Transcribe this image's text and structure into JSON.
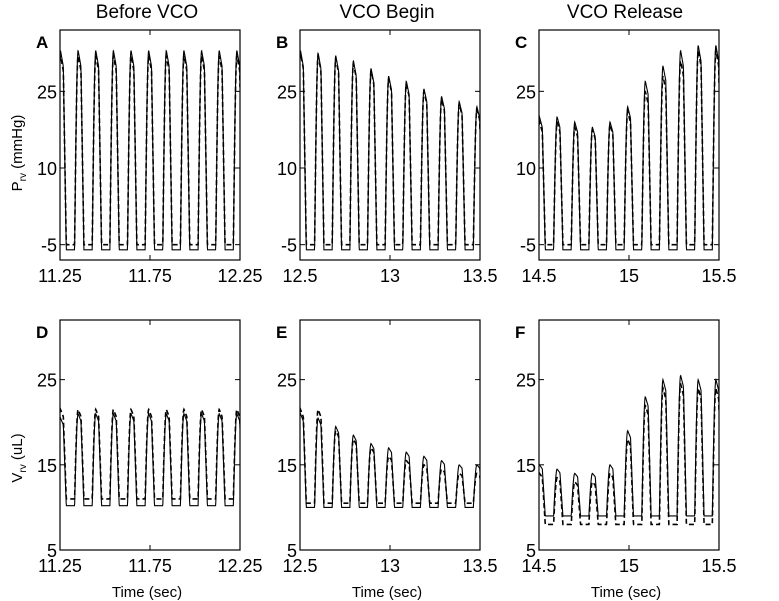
{
  "column_titles": [
    "Before VCO",
    "VCO Begin",
    "VCO Release"
  ],
  "panel_letters": [
    "A",
    "B",
    "C",
    "D",
    "E",
    "F"
  ],
  "row_ylabels": [
    {
      "main": "P",
      "sub": "rv",
      "unit": " (mmHg)"
    },
    {
      "main": "V",
      "sub": "rv",
      "unit": " (uL)"
    }
  ],
  "xlabel": "Time (sec)",
  "chart_data": [
    {
      "panel": "A",
      "type": "line",
      "row": 0,
      "col": 0,
      "title": "Before VCO",
      "ylabel": "Prv (mmHg)",
      "xlim": [
        11.25,
        12.25
      ],
      "ylim": [
        -8,
        37
      ],
      "xticks": [
        11.25,
        11.75,
        12.25
      ],
      "xtick_labels": [
        "11.25",
        "11.75",
        "12.25"
      ],
      "yticks": [
        -5,
        10,
        25
      ],
      "ytick_labels": [
        "-5",
        "10",
        "25"
      ],
      "series": [
        {
          "name": "solid",
          "style": "solid",
          "x_start": 11.25,
          "x_end": 12.25,
          "period": 0.098,
          "phase": 11.29,
          "min": -6,
          "peaks": [
            33,
            33,
            33,
            33,
            33,
            33,
            33,
            33,
            33,
            33,
            33
          ]
        },
        {
          "name": "dashed",
          "style": "dashed",
          "x_start": 11.25,
          "x_end": 12.25,
          "period": 0.098,
          "phase": 11.29,
          "min": -5,
          "peaks": [
            32,
            32,
            32,
            32,
            32,
            32,
            32,
            32,
            32,
            32,
            32
          ]
        }
      ]
    },
    {
      "panel": "B",
      "type": "line",
      "row": 0,
      "col": 1,
      "title": "VCO Begin",
      "ylabel": "Prv (mmHg)",
      "xlim": [
        12.5,
        13.5
      ],
      "ylim": [
        -8,
        37
      ],
      "xticks": [
        12.5,
        13,
        13.5
      ],
      "xtick_labels": [
        "12.5",
        "13",
        "13.5"
      ],
      "yticks": [
        -5,
        10,
        25
      ],
      "ytick_labels": [
        "-5",
        "10",
        "25"
      ],
      "series": [
        {
          "name": "solid",
          "style": "solid",
          "x_start": 12.5,
          "x_end": 13.5,
          "period": 0.098,
          "phase": 12.54,
          "min": -6,
          "peaks": [
            33,
            32.5,
            32,
            31,
            29.5,
            28,
            27,
            25.5,
            24,
            23,
            22
          ]
        },
        {
          "name": "dashed",
          "style": "dashed",
          "x_start": 12.5,
          "x_end": 13.5,
          "period": 0.098,
          "phase": 12.54,
          "min": -5,
          "peaks": [
            32.5,
            32,
            31.5,
            30.5,
            29,
            27.5,
            26.5,
            25,
            23.5,
            22.5,
            21.5
          ]
        }
      ]
    },
    {
      "panel": "C",
      "type": "line",
      "row": 0,
      "col": 2,
      "title": "VCO Release",
      "ylabel": "Prv (mmHg)",
      "xlim": [
        14.5,
        15.5
      ],
      "ylim": [
        -8,
        37
      ],
      "xticks": [
        14.5,
        15,
        15.5
      ],
      "xtick_labels": [
        "14.5",
        "15",
        "15.5"
      ],
      "yticks": [
        -5,
        10,
        25
      ],
      "ytick_labels": [
        "-5",
        "10",
        "25"
      ],
      "series": [
        {
          "name": "solid",
          "style": "solid",
          "x_start": 14.5,
          "x_end": 15.5,
          "period": 0.098,
          "phase": 14.54,
          "min": -6,
          "peaks": [
            20,
            20,
            19,
            18,
            19,
            22,
            27,
            30,
            33,
            34,
            34
          ]
        },
        {
          "name": "dashed",
          "style": "dashed",
          "x_start": 14.5,
          "x_end": 15.5,
          "period": 0.098,
          "phase": 14.54,
          "min": -5,
          "peaks": [
            19,
            19,
            18,
            17.5,
            18.5,
            21,
            25,
            28,
            31,
            33,
            33
          ]
        }
      ]
    },
    {
      "panel": "D",
      "type": "line",
      "row": 1,
      "col": 0,
      "ylabel": "Vrv (uL)",
      "xlim": [
        11.25,
        12.25
      ],
      "ylim": [
        5,
        32
      ],
      "xticks": [
        11.25,
        11.75,
        12.25
      ],
      "xtick_labels": [
        "11.25",
        "11.75",
        "12.25"
      ],
      "yticks": [
        5,
        15,
        25
      ],
      "ytick_labels": [
        "5",
        "15",
        "25"
      ],
      "series": [
        {
          "name": "solid",
          "style": "solid",
          "x_start": 11.25,
          "x_end": 12.25,
          "period": 0.098,
          "phase": 11.29,
          "min": 10.2,
          "peaks": [
            20.5,
            21,
            21,
            21,
            21,
            21,
            21,
            21,
            21,
            21,
            21
          ]
        },
        {
          "name": "dashed",
          "style": "dashed",
          "x_start": 11.25,
          "x_end": 12.25,
          "period": 0.098,
          "phase": 11.29,
          "min": 11,
          "peaks": [
            21.5,
            21.5,
            21.5,
            21.5,
            21.5,
            21.5,
            21.5,
            21.5,
            21.5,
            21.5,
            21.5
          ]
        }
      ]
    },
    {
      "panel": "E",
      "type": "line",
      "row": 1,
      "col": 1,
      "ylabel": "Vrv (uL)",
      "xlim": [
        12.5,
        13.5
      ],
      "ylim": [
        5,
        32
      ],
      "xticks": [
        12.5,
        13,
        13.5
      ],
      "xtick_labels": [
        "12.5",
        "13",
        "13.5"
      ],
      "yticks": [
        5,
        15,
        25
      ],
      "ytick_labels": [
        "5",
        "15",
        "25"
      ],
      "series": [
        {
          "name": "solid",
          "style": "solid",
          "x_start": 12.5,
          "x_end": 13.5,
          "period": 0.098,
          "phase": 12.54,
          "min": 10,
          "peaks": [
            21,
            20.5,
            19.5,
            18.5,
            17.5,
            17,
            16.5,
            16,
            15.5,
            15,
            15
          ]
        },
        {
          "name": "dashed",
          "style": "dashed",
          "x_start": 12.5,
          "x_end": 13.5,
          "period": 0.098,
          "phase": 12.54,
          "min": 10.5,
          "peaks": [
            21.5,
            21.5,
            19,
            18,
            17,
            16,
            15.5,
            15,
            14.5,
            14,
            14
          ]
        }
      ]
    },
    {
      "panel": "F",
      "type": "line",
      "row": 1,
      "col": 2,
      "ylabel": "Vrv (uL)",
      "xlim": [
        14.5,
        15.5
      ],
      "ylim": [
        5,
        32
      ],
      "xticks": [
        14.5,
        15,
        15.5
      ],
      "xtick_labels": [
        "14.5",
        "15",
        "15.5"
      ],
      "yticks": [
        5,
        15,
        25
      ],
      "ytick_labels": [
        "5",
        "15",
        "25"
      ],
      "series": [
        {
          "name": "solid",
          "style": "solid",
          "x_start": 14.5,
          "x_end": 15.5,
          "period": 0.098,
          "phase": 14.54,
          "min": 9,
          "peaks": [
            15,
            14.5,
            14,
            14,
            15,
            19,
            23,
            25,
            25.5,
            25,
            25
          ]
        },
        {
          "name": "dashed",
          "style": "dashed",
          "x_start": 14.5,
          "x_end": 15.5,
          "period": 0.098,
          "phase": 14.54,
          "min": 8,
          "peaks": [
            14,
            13.5,
            13,
            13,
            14,
            18,
            22,
            24,
            24.5,
            24,
            24
          ]
        }
      ]
    }
  ]
}
